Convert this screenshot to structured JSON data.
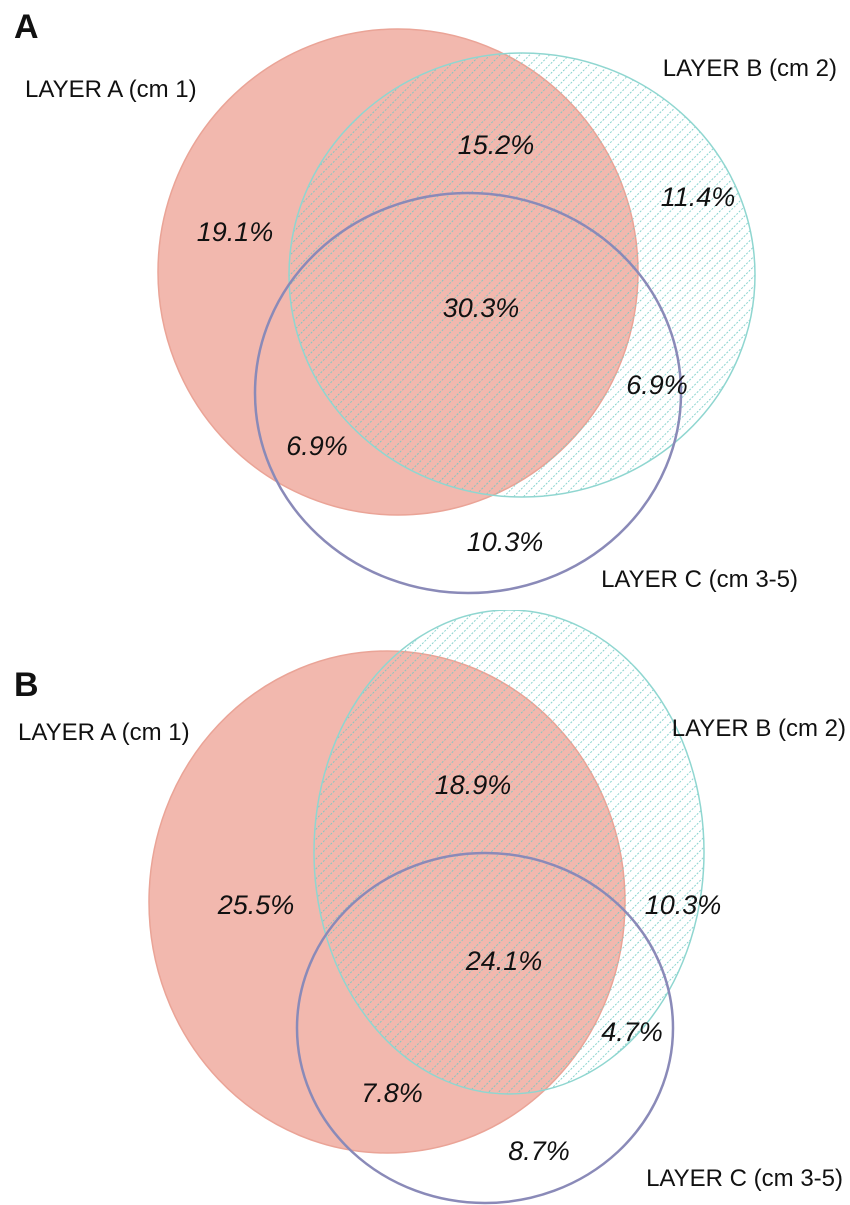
{
  "colors": {
    "layer_a_fill": "#f2b8ae",
    "layer_a_stroke": "#eaa497",
    "layer_b_hatch": "#6fc9c3",
    "layer_b_stroke": "#8fd6d0",
    "layer_c_stroke": "#8a8ab8"
  },
  "panels": [
    {
      "letter": "A",
      "labels": {
        "layer_a": "LAYER A (cm 1)",
        "layer_b": "LAYER B (cm 2)",
        "layer_c": "LAYER C (cm 3-5)"
      },
      "regions": {
        "a_only": "19.1%",
        "a_b": "15.2%",
        "b_only": "11.4%",
        "a_b_c": "30.3%",
        "b_c": "6.9%",
        "a_c": "6.9%",
        "c_only": "10.3%"
      }
    },
    {
      "letter": "B",
      "labels": {
        "layer_a": "LAYER A (cm 1)",
        "layer_b": "LAYER B (cm 2)",
        "layer_c": "LAYER C (cm 3-5)"
      },
      "regions": {
        "a_only": "25.5%",
        "a_b": "18.9%",
        "b_only": "10.3%",
        "a_b_c": "24.1%",
        "b_c": "4.7%",
        "a_c": "7.8%",
        "c_only": "8.7%"
      }
    }
  ]
}
